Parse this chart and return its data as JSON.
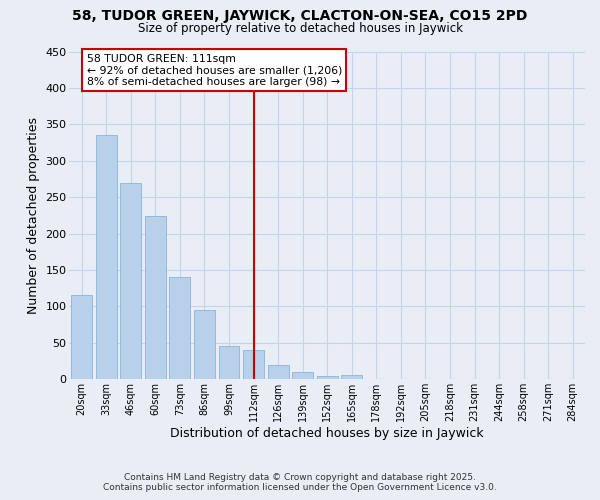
{
  "title": "58, TUDOR GREEN, JAYWICK, CLACTON-ON-SEA, CO15 2PD",
  "subtitle": "Size of property relative to detached houses in Jaywick",
  "xlabel": "Distribution of detached houses by size in Jaywick",
  "ylabel": "Number of detached properties",
  "bar_values": [
    116,
    335,
    270,
    224,
    141,
    95,
    46,
    40,
    20,
    10,
    5,
    6,
    0,
    0,
    0,
    0,
    0,
    0,
    1,
    0,
    0
  ],
  "bar_labels": [
    "20sqm",
    "33sqm",
    "46sqm",
    "60sqm",
    "73sqm",
    "86sqm",
    "99sqm",
    "112sqm",
    "126sqm",
    "139sqm",
    "152sqm",
    "165sqm",
    "178sqm",
    "192sqm",
    "205sqm",
    "218sqm",
    "231sqm",
    "244sqm",
    "258sqm",
    "271sqm",
    "284sqm"
  ],
  "bar_color": "#b8d0ea",
  "bar_edge_color": "#8ab4d8",
  "grid_color": "#c8d4e6",
  "background_color": "#e8edf6",
  "vline_idx": 7,
  "vline_color": "#cc0000",
  "annotation_title": "58 TUDOR GREEN: 111sqm",
  "annotation_line2": "← 92% of detached houses are smaller (1,206)",
  "annotation_line3": "8% of semi-detached houses are larger (98) →",
  "annotation_box_facecolor": "#ffffff",
  "annotation_box_edgecolor": "#cc0000",
  "ylim": [
    0,
    450
  ],
  "yticks": [
    0,
    50,
    100,
    150,
    200,
    250,
    300,
    350,
    400,
    450
  ],
  "footer_line1": "Contains HM Land Registry data © Crown copyright and database right 2025.",
  "footer_line2": "Contains public sector information licensed under the Open Government Licence v3.0."
}
